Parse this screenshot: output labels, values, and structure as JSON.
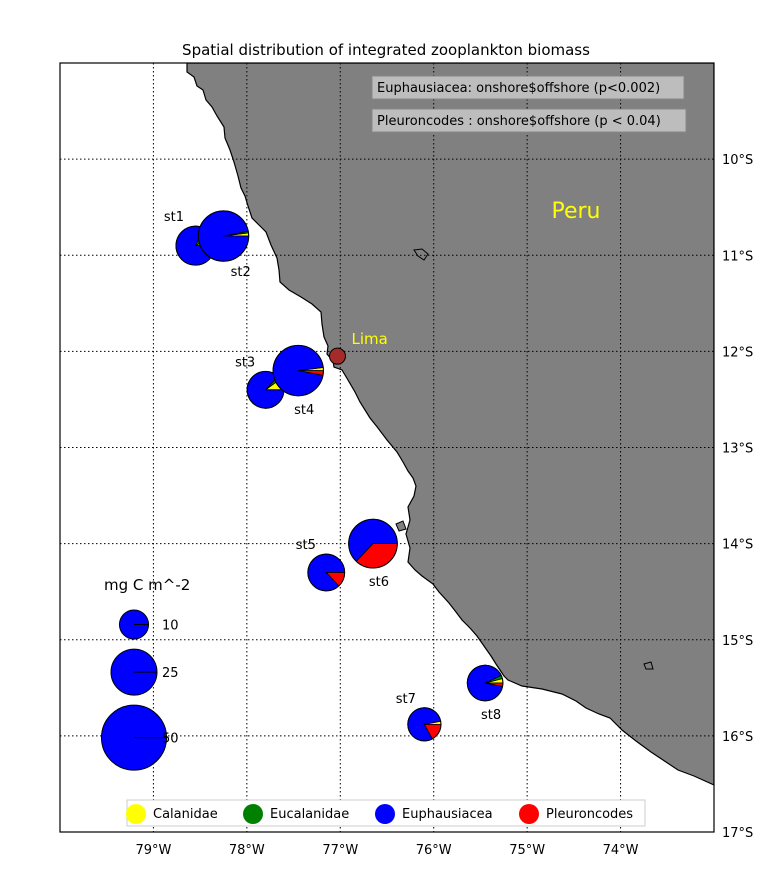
{
  "title": "Spatial distribution of integrated zooplankton biomass",
  "country_label": "Peru",
  "city": {
    "name": "Lima",
    "lon": -77.03,
    "lat": -12.05
  },
  "annotations": [
    "Euphausiacea: onshore$offshore (p<0.002)",
    "Pleuroncodes : onshore$offshore (p < 0.04)"
  ],
  "colors": {
    "land": "#808080",
    "Calanidae": "#ffff00",
    "Eucalanidae": "#008000",
    "Euphausiacea": "#0000ff",
    "Pleuroncodes": "#ff0000",
    "city_marker": "#a52a2a",
    "city_label": "#ffff00",
    "country_label": "#ffff00"
  },
  "map_extent": {
    "lon_min": -80.0,
    "lon_max": -73.0,
    "lat_min": -17.0,
    "lat_max": -9.0
  },
  "x_ticks": [
    {
      "value": -79,
      "label": "79°W"
    },
    {
      "value": -78,
      "label": "78°W"
    },
    {
      "value": -77,
      "label": "77°W"
    },
    {
      "value": -76,
      "label": "76°W"
    },
    {
      "value": -75,
      "label": "75°W"
    },
    {
      "value": -74,
      "label": "74°W"
    }
  ],
  "y_ticks": [
    {
      "value": -10,
      "label": "10°S"
    },
    {
      "value": -11,
      "label": "11°S"
    },
    {
      "value": -12,
      "label": "12°S"
    },
    {
      "value": -13,
      "label": "13°S"
    },
    {
      "value": -14,
      "label": "14°S"
    },
    {
      "value": -15,
      "label": "15°S"
    },
    {
      "value": -16,
      "label": "16°S"
    },
    {
      "value": -17,
      "label": "17°S"
    }
  ],
  "groups": [
    "Calanidae",
    "Eucalanidae",
    "Euphausiacea",
    "Pleuroncodes"
  ],
  "size_legend": {
    "title": "mg C m^-2",
    "entries": [
      {
        "value": 10,
        "label": "10"
      },
      {
        "value": 25,
        "label": "25"
      },
      {
        "value": 50,
        "label": "50"
      }
    ]
  },
  "chart_data": {
    "type": "pie",
    "title": "Spatial distribution of integrated zooplankton biomass",
    "series": [
      "Calanidae",
      "Eucalanidae",
      "Euphausiacea",
      "Pleuroncodes"
    ],
    "stations": [
      {
        "label": "st1",
        "lon": -78.55,
        "lat": -10.9,
        "biomass": 18,
        "fractions": {
          "Calanidae": 0.08,
          "Eucalanidae": 0.1,
          "Euphausiacea": 0.82,
          "Pleuroncodes": 0.0
        }
      },
      {
        "label": "st2",
        "lon": -78.25,
        "lat": -10.8,
        "biomass": 30,
        "fractions": {
          "Calanidae": 0.02,
          "Eucalanidae": 0.01,
          "Euphausiacea": 0.97,
          "Pleuroncodes": 0.0
        }
      },
      {
        "label": "st3",
        "lon": -77.8,
        "lat": -12.4,
        "biomass": 16,
        "fractions": {
          "Calanidae": 0.1,
          "Eucalanidae": 0.03,
          "Euphausiacea": 0.87,
          "Pleuroncodes": 0.0
        }
      },
      {
        "label": "st4",
        "lon": -77.45,
        "lat": -12.2,
        "biomass": 30,
        "fractions": {
          "Calanidae": 0.02,
          "Eucalanidae": 0.0,
          "Euphausiacea": 0.95,
          "Pleuroncodes": 0.03
        }
      },
      {
        "label": "st5",
        "lon": -77.15,
        "lat": -14.3,
        "biomass": 16,
        "fractions": {
          "Calanidae": 0.0,
          "Eucalanidae": 0.0,
          "Euphausiacea": 0.87,
          "Pleuroncodes": 0.13
        }
      },
      {
        "label": "st6",
        "lon": -76.65,
        "lat": -14.0,
        "biomass": 28,
        "fractions": {
          "Calanidae": 0.0,
          "Eucalanidae": 0.0,
          "Euphausiacea": 0.63,
          "Pleuroncodes": 0.37
        }
      },
      {
        "label": "st7",
        "lon": -76.1,
        "lat": -15.88,
        "biomass": 13,
        "fractions": {
          "Calanidae": 0.03,
          "Eucalanidae": 0.0,
          "Euphausiacea": 0.8,
          "Pleuroncodes": 0.17
        }
      },
      {
        "label": "st8",
        "lon": -75.45,
        "lat": -15.45,
        "biomass": 15,
        "fractions": {
          "Calanidae": 0.04,
          "Eucalanidae": 0.03,
          "Euphausiacea": 0.9,
          "Pleuroncodes": 0.03
        }
      }
    ]
  }
}
